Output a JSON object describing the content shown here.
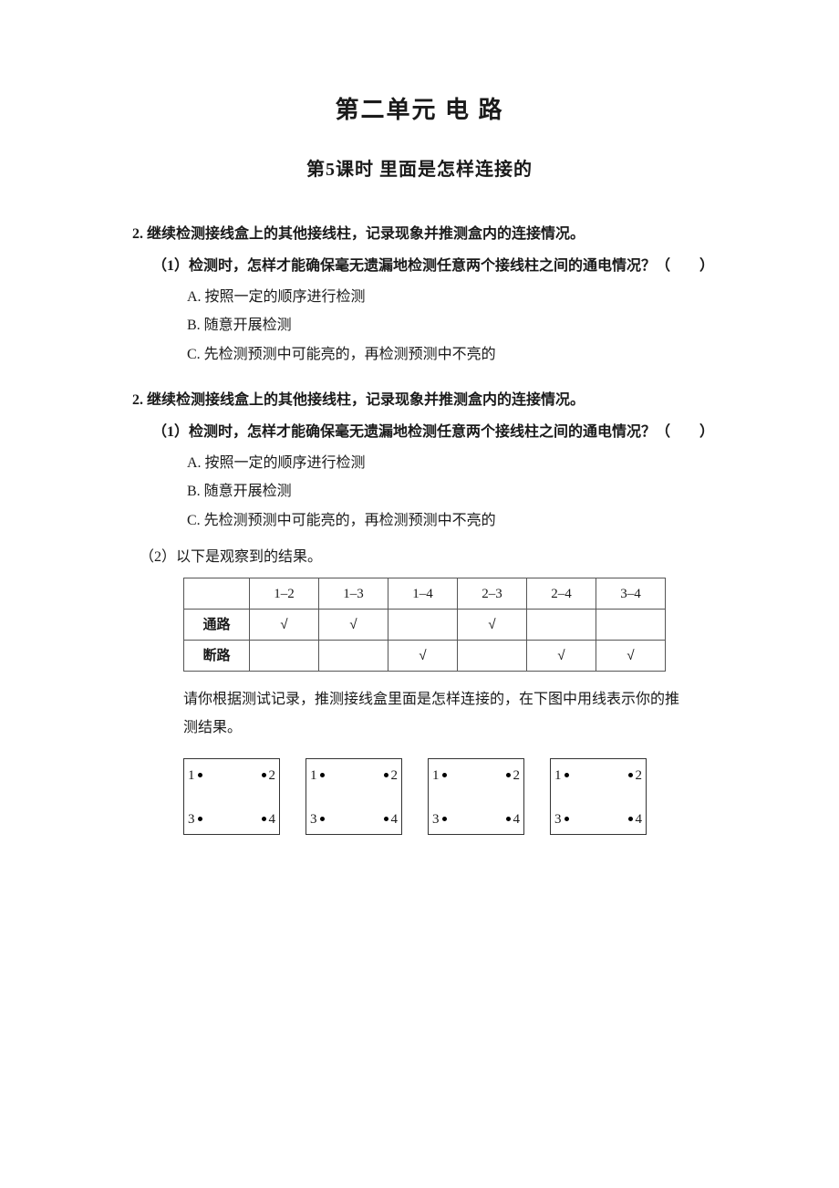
{
  "unitTitle": "第二单元  电 路",
  "lessonTitle": "第5课时  里面是怎样连接的",
  "block1": {
    "qMain": "2. 继续检测接线盒上的其他接线柱，记录现象并推测盒内的连接情况。",
    "qSub": "（1）检测时，怎样才能确保毫无遗漏地检测任意两个接线柱之间的通电情况？（　　）",
    "optA": "A. 按照一定的顺序进行检测",
    "optB": "B. 随意开展检测",
    "optC": "C. 先检测预测中可能亮的，再检测预测中不亮的"
  },
  "block2": {
    "qMain": "2. 继续检测接线盒上的其他接线柱，记录现象并推测盒内的连接情况。",
    "qSub": "（1）检测时，怎样才能确保毫无遗漏地检测任意两个接线柱之间的通电情况？（　　）",
    "optA": "A. 按照一定的顺序进行检测",
    "optB": "B. 随意开展检测",
    "optC": "C. 先检测预测中可能亮的，再检测预测中不亮的"
  },
  "resultsLabel": "（2）以下是观察到的结果。",
  "table": {
    "headers": [
      "",
      "1–2",
      "1–3",
      "1–4",
      "2–3",
      "2–4",
      "3–4"
    ],
    "rows": [
      {
        "label": "通路",
        "cells": [
          "√",
          "√",
          "",
          "√",
          "",
          ""
        ]
      },
      {
        "label": "断路",
        "cells": [
          "",
          "",
          "√",
          "",
          "√",
          "√"
        ]
      }
    ]
  },
  "instruction": "请你根据测试记录，推测接线盒里面是怎样连接的，在下图中用线表示你的推测结果。",
  "diagram": {
    "n1": "1",
    "n2": "2",
    "n3": "3",
    "n4": "4"
  },
  "colors": {
    "background": "#ffffff",
    "text": "#1a1a1a",
    "border": "#555555"
  }
}
